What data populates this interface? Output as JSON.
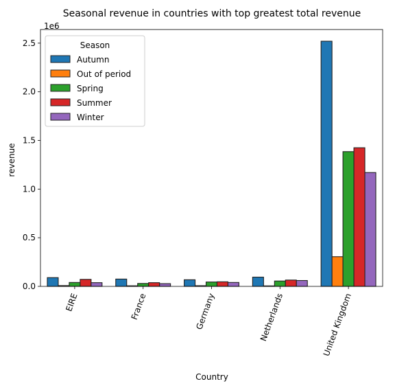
{
  "chart_data": {
    "type": "bar",
    "title": "Seasonal revenue in countries with top greatest total revenue",
    "xlabel": "Country",
    "ylabel": "revenue",
    "y_offset_label": "1e6",
    "ylim": [
      0,
      2640000
    ],
    "yticks": [
      0,
      500000,
      1000000,
      1500000,
      2000000,
      2500000
    ],
    "ytick_labels": [
      "0.0",
      "0.5",
      "1.0",
      "1.5",
      "2.0",
      "2.5"
    ],
    "categories": [
      "EIRE",
      "France",
      "Germany",
      "Netherlands",
      "United Kingdom"
    ],
    "legend": {
      "title": "Season",
      "position": "top-left"
    },
    "grid": false,
    "series": [
      {
        "name": "Autumn",
        "color": "#1f77b4",
        "values": [
          90000,
          75000,
          68000,
          95000,
          2520000
        ]
      },
      {
        "name": "Out of period",
        "color": "#ff7f0e",
        "values": [
          8000,
          6000,
          7000,
          5000,
          305000
        ]
      },
      {
        "name": "Spring",
        "color": "#2ca02c",
        "values": [
          40000,
          30000,
          45000,
          55000,
          1385000
        ]
      },
      {
        "name": "Summer",
        "color": "#d62728",
        "values": [
          72000,
          38000,
          47000,
          65000,
          1425000
        ]
      },
      {
        "name": "Winter",
        "color": "#9467bd",
        "values": [
          38000,
          28000,
          40000,
          60000,
          1170000
        ]
      }
    ]
  }
}
